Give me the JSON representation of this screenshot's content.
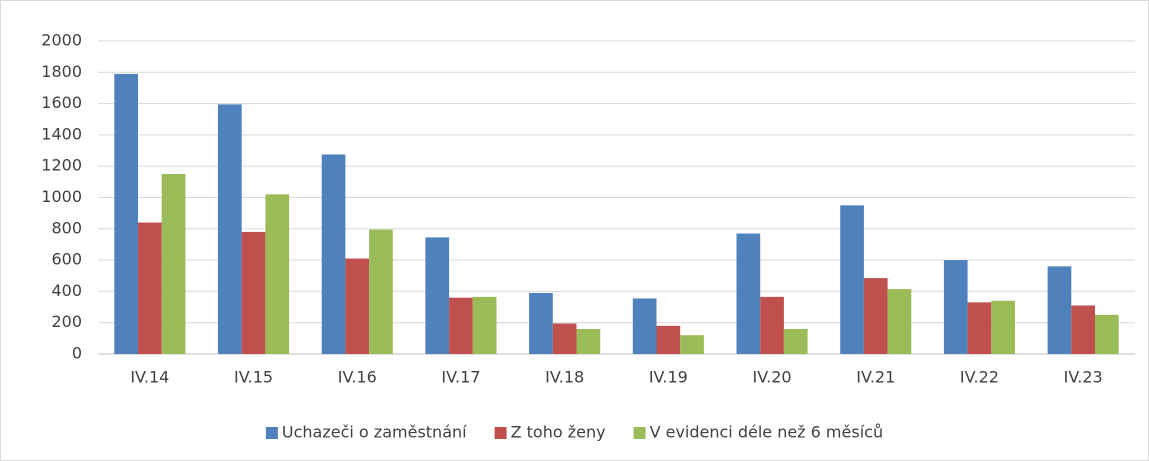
{
  "chart_data": {
    "type": "bar",
    "categories": [
      "IV.14",
      "IV.15",
      "IV.16",
      "IV.17",
      "IV.18",
      "IV.19",
      "IV.20",
      "IV.21",
      "IV.22",
      "IV.23"
    ],
    "series": [
      {
        "name": "Uchazeči o zaměstnání",
        "color": "#4f81bd",
        "values": [
          1790,
          1595,
          1275,
          745,
          390,
          355,
          770,
          950,
          600,
          560
        ]
      },
      {
        "name": "Z toho ženy",
        "color": "#c0504d",
        "values": [
          840,
          780,
          610,
          360,
          195,
          180,
          365,
          485,
          330,
          310
        ]
      },
      {
        "name": "V evidenci déle než 6 měsíců",
        "color": "#9bbb59",
        "values": [
          1150,
          1020,
          795,
          365,
          160,
          120,
          160,
          415,
          340,
          250
        ]
      }
    ],
    "ylim": [
      0,
      2000
    ],
    "yticks": [
      0,
      200,
      400,
      600,
      800,
      1000,
      1200,
      1400,
      1600,
      1800,
      2000
    ],
    "grid": true,
    "legend": "bottom"
  }
}
